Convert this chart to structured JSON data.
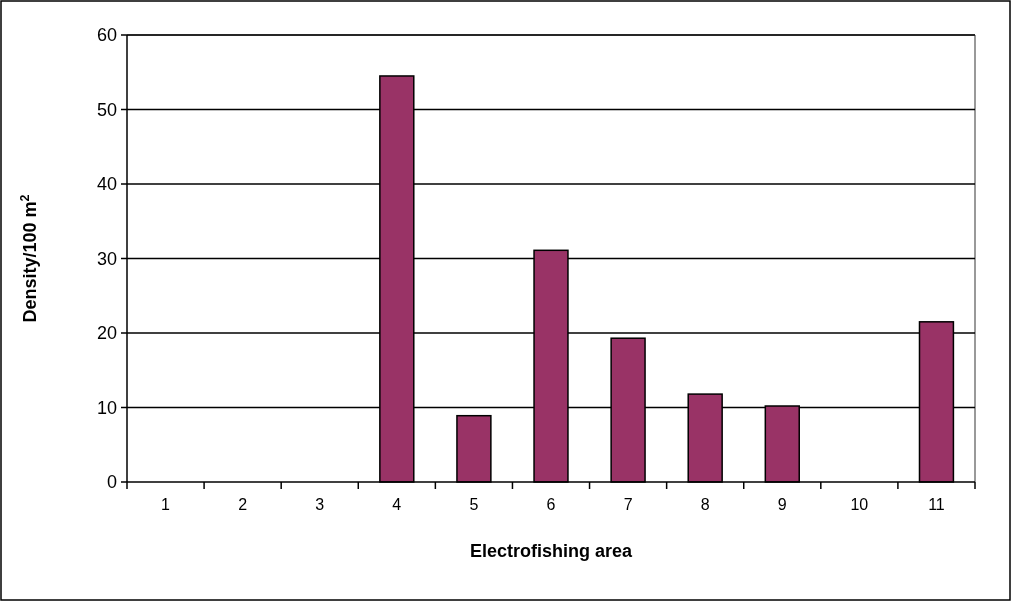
{
  "chart_data": {
    "type": "bar",
    "xlabel": "Electrofishing area",
    "ylabel": "Density/100 m$^{2}$",
    "categories": [
      "1",
      "2",
      "3",
      "4",
      "5",
      "6",
      "7",
      "8",
      "9",
      "10",
      "11"
    ],
    "values": [
      0,
      0,
      0,
      54.5,
      8.9,
      31.1,
      19.3,
      11.8,
      10.2,
      0,
      21.5
    ],
    "color": "#993366",
    "ylim": [
      0,
      60
    ],
    "yticks": [
      0,
      10,
      20,
      30,
      40,
      50,
      60
    ],
    "grid": "y"
  }
}
